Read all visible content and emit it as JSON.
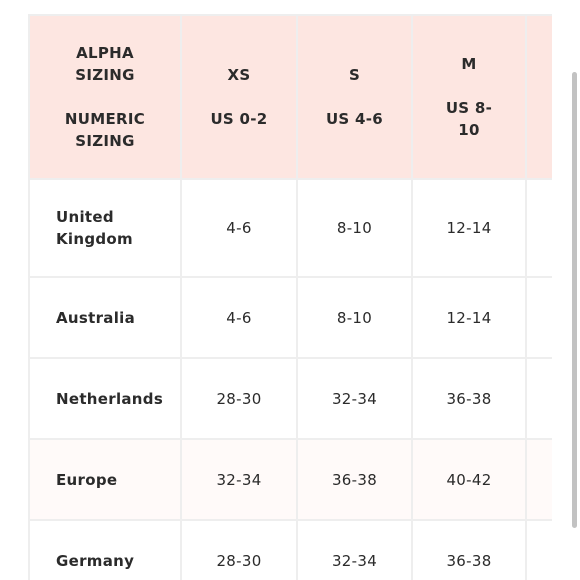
{
  "header": {
    "label_col": [
      "ALPHA",
      "SIZING",
      "",
      "NUMERIC",
      "SIZING"
    ],
    "sizes": [
      {
        "alpha": "XS",
        "numeric": [
          "US 0-2"
        ]
      },
      {
        "alpha": "S",
        "numeric": [
          "US 4-6"
        ]
      },
      {
        "alpha": "M",
        "numeric": [
          "US 8-",
          "10"
        ]
      }
    ]
  },
  "rows": [
    {
      "country": [
        "United",
        "Kingdom"
      ],
      "values": [
        "4-6",
        "8-10",
        "12-14"
      ]
    },
    {
      "country": [
        "Australia"
      ],
      "values": [
        "4-6",
        "8-10",
        "12-14"
      ]
    },
    {
      "country": [
        "Netherlands"
      ],
      "values": [
        "28-30",
        "32-34",
        "36-38"
      ]
    },
    {
      "country": [
        "Europe"
      ],
      "values": [
        "32-34",
        "36-38",
        "40-42"
      ]
    },
    {
      "country": [
        "Germany"
      ],
      "values": [
        "28-30",
        "32-34",
        "36-38"
      ]
    }
  ],
  "colors": {
    "header_bg": "#fde6e1",
    "border": "#eeeeee",
    "text": "#2b2b2b",
    "scrollbar": "#c2c2c2"
  }
}
